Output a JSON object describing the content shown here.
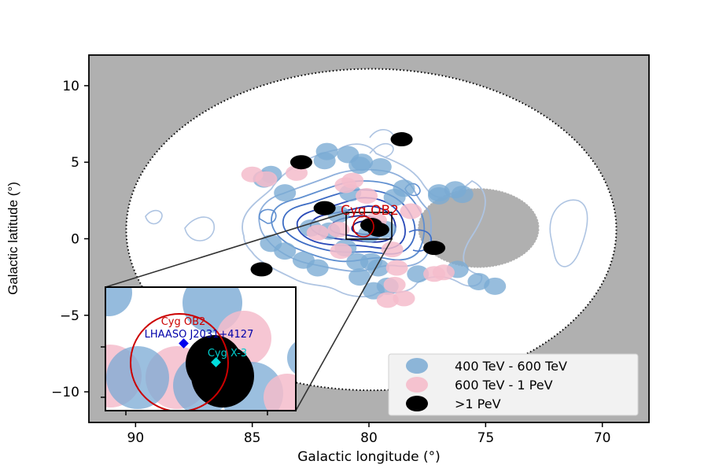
{
  "chart_data": {
    "type": "scatter",
    "xlabel": "Galactic longitude (°)",
    "ylabel": "Galactic latitude (°)",
    "xlim": [
      92,
      68
    ],
    "ylim": [
      -12,
      12
    ],
    "xticks": [
      90,
      85,
      80,
      75,
      70
    ],
    "yticks": [
      10,
      5,
      0,
      -5,
      -10
    ],
    "x_tick_labels": [
      "90",
      "85",
      "80",
      "75",
      "70"
    ],
    "y_tick_labels": [
      "10",
      "5",
      "0",
      "−5",
      "−10"
    ],
    "region": {
      "center": [
        79.9,
        0.6
      ],
      "outer_radius_deg": 10.5,
      "excluded_center": [
        75.3,
        0.7
      ],
      "excluded_radius_deg": 2.6
    },
    "grid": false,
    "legend_position": "lower-right",
    "legend": [
      {
        "label": "400 TeV - 600 TeV",
        "color": "#7aaad4"
      },
      {
        "label": "600 TeV - 1 PeV",
        "color": "#f5bccb"
      },
      {
        "label": ">1 PeV",
        "color": "#000000"
      }
    ],
    "annotation": {
      "text": "Cyg OB2",
      "x": 79.7,
      "y": 1.7,
      "color": "#cc0000"
    },
    "series": [
      {
        "name": "400 TeV - 600 TeV",
        "color": "#7aaad4",
        "points": [
          [
            80.9,
            5.5
          ],
          [
            80.8,
            3.0
          ],
          [
            80.4,
            4.8
          ],
          [
            81.9,
            5.1
          ],
          [
            81.8,
            5.7
          ],
          [
            80.3,
            5.0
          ],
          [
            84.2,
            4.2
          ],
          [
            84.5,
            3.9
          ],
          [
            83.6,
            3.0
          ],
          [
            77.0,
            3.0
          ],
          [
            77.0,
            2.8
          ],
          [
            78.9,
            2.7
          ],
          [
            79.5,
            4.7
          ],
          [
            78.5,
            3.3
          ],
          [
            76.3,
            3.2
          ],
          [
            76.0,
            2.9
          ],
          [
            81.3,
            1.6
          ],
          [
            81.7,
            0.5
          ],
          [
            82.5,
            0.7
          ],
          [
            79.3,
            0.6
          ],
          [
            80.0,
            0.3
          ],
          [
            84.2,
            -0.3
          ],
          [
            83.6,
            -0.8
          ],
          [
            82.8,
            -1.4
          ],
          [
            82.2,
            -1.9
          ],
          [
            81.0,
            -0.6
          ],
          [
            80.5,
            -1.5
          ],
          [
            79.9,
            -1.5
          ],
          [
            79.6,
            -1.9
          ],
          [
            80.4,
            -2.5
          ],
          [
            79.8,
            -3.4
          ],
          [
            79.2,
            -3.1
          ],
          [
            77.9,
            -2.3
          ],
          [
            75.3,
            -2.8
          ],
          [
            74.6,
            -3.1
          ],
          [
            76.2,
            -2.0
          ]
        ]
      },
      {
        "name": "600 TeV - 1 PeV",
        "color": "#f5bccb",
        "points": [
          [
            85.0,
            4.2
          ],
          [
            84.4,
            3.9
          ],
          [
            83.1,
            4.3
          ],
          [
            81.0,
            3.5
          ],
          [
            80.7,
            3.8
          ],
          [
            80.1,
            2.8
          ],
          [
            81.3,
            0.6
          ],
          [
            82.2,
            0.4
          ],
          [
            79.7,
            1.2
          ],
          [
            78.2,
            1.8
          ],
          [
            79.0,
            -0.7
          ],
          [
            81.2,
            -0.8
          ],
          [
            78.8,
            -1.9
          ],
          [
            78.9,
            -3.0
          ],
          [
            77.2,
            -2.3
          ],
          [
            76.8,
            -2.2
          ],
          [
            78.5,
            -3.9
          ],
          [
            79.2,
            -4.0
          ]
        ]
      },
      {
        "name": ">1 PeV",
        "color": "#000000",
        "points": [
          [
            78.6,
            6.5
          ],
          [
            82.9,
            5.0
          ],
          [
            81.9,
            2.0
          ],
          [
            79.6,
            0.6
          ],
          [
            79.9,
            0.9
          ],
          [
            77.2,
            -0.6
          ],
          [
            84.6,
            -2.0
          ]
        ]
      }
    ]
  },
  "inset": {
    "labels": [
      {
        "text": "Cyg OB2",
        "color": "#cc0000"
      },
      {
        "text": "LHAASO J2031+4127",
        "color": "#0000aa"
      },
      {
        "text": "Cyg X-3",
        "color": "#00cccc"
      }
    ]
  }
}
